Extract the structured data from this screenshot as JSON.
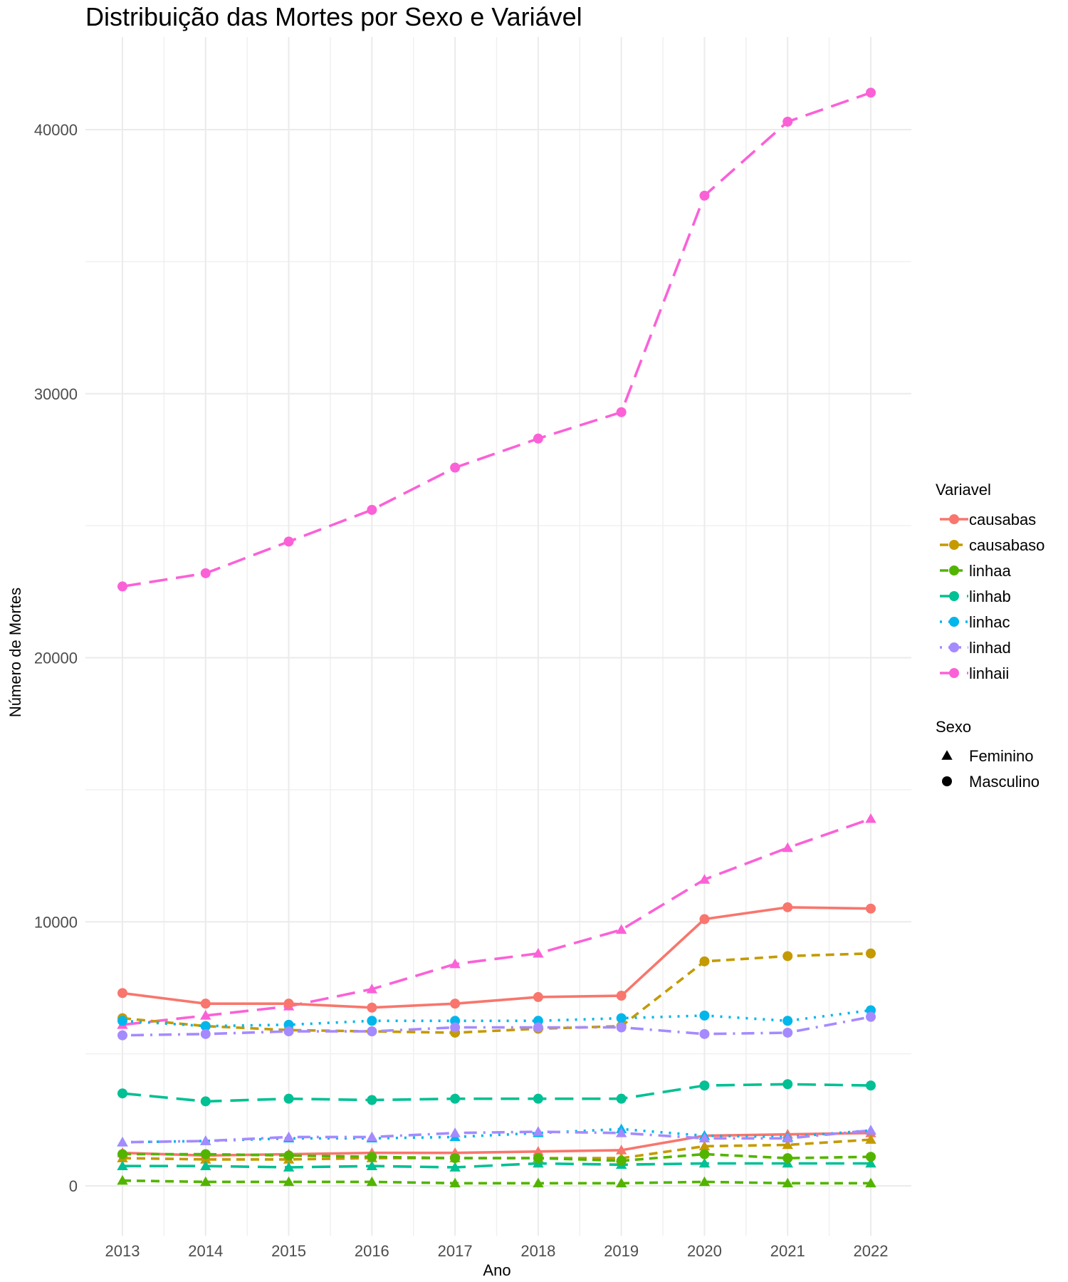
{
  "chart_data": {
    "type": "line",
    "title": "Distribuição das Mortes por Sexo e Variável",
    "xlabel": "Ano",
    "ylabel": "Número de Mortes",
    "x": [
      2013,
      2014,
      2015,
      2016,
      2017,
      2018,
      2019,
      2020,
      2021,
      2022
    ],
    "x_ticks": [
      "2013",
      "2014",
      "2015",
      "2016",
      "2017",
      "2018",
      "2019",
      "2020",
      "2021",
      "2022"
    ],
    "y_ticks": [
      "0",
      "10000",
      "20000",
      "30000",
      "40000"
    ],
    "ylim": [
      -1700,
      42500
    ],
    "grid": true,
    "legend_position": "right",
    "legend_variavel_title": "Variavel",
    "legend_sexo_title": "Sexo",
    "sexo_levels": [
      {
        "name": "Feminino",
        "shape": "triangle"
      },
      {
        "name": "Masculino",
        "shape": "circle"
      }
    ],
    "variaveis": [
      {
        "name": "causabas",
        "color": "#F8766D",
        "dash": "solid"
      },
      {
        "name": "causabaso",
        "color": "#C49A00",
        "dash": "dashed"
      },
      {
        "name": "linhaa",
        "color": "#53B400",
        "dash": "dashed"
      },
      {
        "name": "linhab",
        "color": "#00C094",
        "dash": "longdash"
      },
      {
        "name": "linhac",
        "color": "#00B6EB",
        "dash": "dotted"
      },
      {
        "name": "linhad",
        "color": "#A58AFF",
        "dash": "dotdash"
      },
      {
        "name": "linhaii",
        "color": "#FB61D7",
        "dash": "longdash"
      }
    ],
    "series": [
      {
        "variavel": "linhaii",
        "sexo": "Masculino",
        "values": [
          22700,
          23200,
          24400,
          25600,
          27200,
          28300,
          29300,
          37500,
          40300,
          41400
        ]
      },
      {
        "variavel": "linhaii",
        "sexo": "Feminino",
        "values": [
          6100,
          6450,
          6800,
          7450,
          8400,
          8800,
          9700,
          11600,
          12800,
          13900
        ]
      },
      {
        "variavel": "causabas",
        "sexo": "Masculino",
        "values": [
          7300,
          6900,
          6900,
          6750,
          6900,
          7150,
          7200,
          10100,
          10550,
          10500
        ]
      },
      {
        "variavel": "causabas",
        "sexo": "Feminino",
        "values": [
          1250,
          1150,
          1200,
          1250,
          1250,
          1300,
          1350,
          1900,
          1950,
          2000
        ]
      },
      {
        "variavel": "causabaso",
        "sexo": "Masculino",
        "values": [
          6350,
          6050,
          5900,
          5850,
          5800,
          5950,
          6050,
          8500,
          8700,
          8800
        ]
      },
      {
        "variavel": "causabaso",
        "sexo": "Feminino",
        "values": [
          1050,
          1000,
          1000,
          1050,
          1050,
          1050,
          1050,
          1500,
          1550,
          1750
        ]
      },
      {
        "variavel": "linhac",
        "sexo": "Masculino",
        "values": [
          6250,
          6050,
          6100,
          6250,
          6250,
          6250,
          6350,
          6450,
          6250,
          6650
        ]
      },
      {
        "variavel": "linhac",
        "sexo": "Feminino",
        "values": [
          1650,
          1700,
          1800,
          1800,
          1850,
          2000,
          2150,
          1900,
          1850,
          2100
        ]
      },
      {
        "variavel": "linhad",
        "sexo": "Masculino",
        "values": [
          5700,
          5750,
          5850,
          5850,
          6000,
          6000,
          6000,
          5750,
          5800,
          6400
        ]
      },
      {
        "variavel": "linhad",
        "sexo": "Feminino",
        "values": [
          1650,
          1700,
          1850,
          1850,
          2000,
          2050,
          2000,
          1800,
          1800,
          2100
        ]
      },
      {
        "variavel": "linhab",
        "sexo": "Masculino",
        "values": [
          3500,
          3200,
          3300,
          3250,
          3300,
          3300,
          3300,
          3800,
          3850,
          3800
        ]
      },
      {
        "variavel": "linhab",
        "sexo": "Feminino",
        "values": [
          750,
          750,
          700,
          750,
          700,
          850,
          800,
          850,
          850,
          850
        ]
      },
      {
        "variavel": "linhaa",
        "sexo": "Masculino",
        "values": [
          1200,
          1200,
          1150,
          1100,
          1050,
          1050,
          950,
          1200,
          1050,
          1100
        ]
      },
      {
        "variavel": "linhaa",
        "sexo": "Feminino",
        "values": [
          200,
          150,
          150,
          150,
          100,
          100,
          100,
          150,
          100,
          100
        ]
      }
    ]
  }
}
